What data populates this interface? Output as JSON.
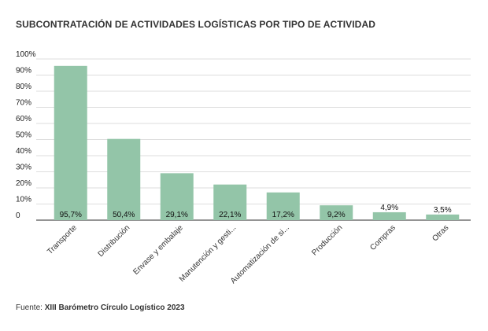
{
  "chart_data": {
    "type": "bar",
    "title": "SUBCONTRATACIÓN DE ACTIVIDADES LOGÍSTICAS POR TIPO DE ACTIVIDAD",
    "xlabel": "",
    "ylabel": "",
    "ylim": [
      0,
      100
    ],
    "yticks": [
      "0",
      "10%",
      "20%",
      "30%",
      "40%",
      "50%",
      "60%",
      "70%",
      "80%",
      "90%",
      "100%"
    ],
    "categories": [
      "Transporte",
      "Distribución",
      "Envase y embalaje",
      "Manutención y gesti...",
      "Automatización de si...",
      "Producción",
      "Compras",
      "Otras"
    ],
    "values": [
      95.7,
      50.4,
      29.1,
      22.1,
      17.2,
      9.2,
      4.9,
      3.5
    ],
    "data_labels": [
      "95,7%",
      "50,4%",
      "29,1%",
      "22,1%",
      "17,2%",
      "9,2%",
      "4,9%",
      "3,5%"
    ],
    "bar_color": "#93c5a8",
    "grid": true
  },
  "footer": {
    "source_label": "Fuente: ",
    "source_text": "XIII Barómetro Círculo Logístico 2023"
  }
}
